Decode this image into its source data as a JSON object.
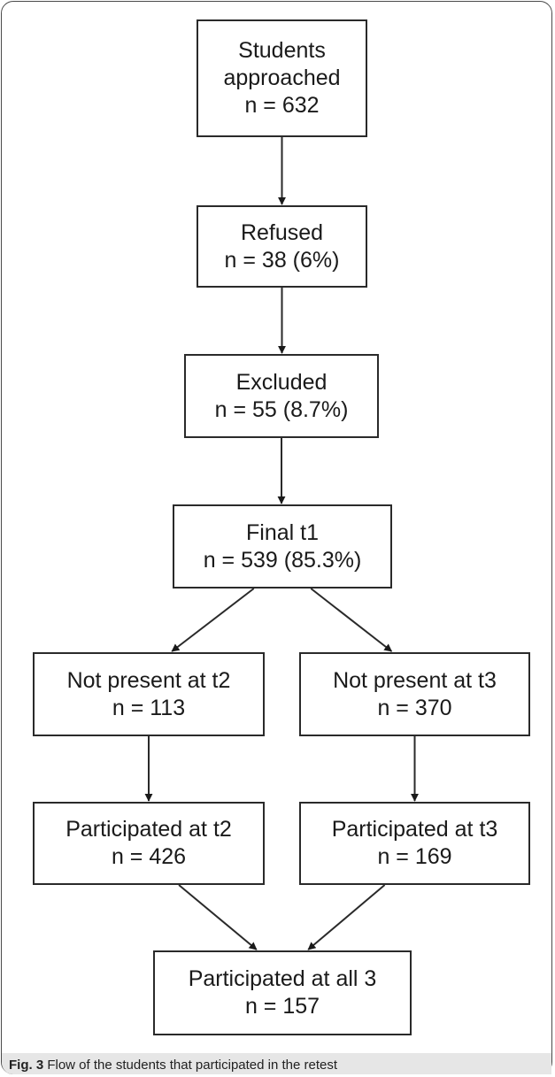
{
  "nodes": [
    {
      "id": "approached",
      "lines": [
        "Students",
        "approached",
        "n = 632"
      ]
    },
    {
      "id": "refused",
      "lines": [
        "Refused",
        "n = 38 (6%)"
      ]
    },
    {
      "id": "excluded",
      "lines": [
        "Excluded",
        "n = 55 (8.7%)"
      ]
    },
    {
      "id": "final_t1",
      "lines": [
        "Final t1",
        "n = 539 (85.3%)"
      ]
    },
    {
      "id": "not_present_t2",
      "lines": [
        "Not present at t2",
        "n = 113"
      ]
    },
    {
      "id": "not_present_t3",
      "lines": [
        "Not present at t3",
        "n = 370"
      ]
    },
    {
      "id": "participated_t2",
      "lines": [
        "Participated at t2",
        "n = 426"
      ]
    },
    {
      "id": "participated_t3",
      "lines": [
        "Participated at t3",
        "n = 169"
      ]
    },
    {
      "id": "participated_all",
      "lines": [
        "Participated at all 3",
        "n = 157"
      ]
    }
  ],
  "edges": [
    [
      "approached",
      "refused"
    ],
    [
      "refused",
      "excluded"
    ],
    [
      "excluded",
      "final_t1"
    ],
    [
      "final_t1",
      "not_present_t2"
    ],
    [
      "final_t1",
      "not_present_t3"
    ],
    [
      "not_present_t2",
      "participated_t2"
    ],
    [
      "not_present_t3",
      "participated_t3"
    ],
    [
      "participated_t2",
      "participated_all"
    ],
    [
      "participated_t3",
      "participated_all"
    ]
  ],
  "caption": {
    "label": "Fig. 3",
    "text": " Flow of the students that participated in the retest"
  },
  "colors": {
    "stroke": "#2a2a2a",
    "caption_band": "#e6e6e6"
  }
}
